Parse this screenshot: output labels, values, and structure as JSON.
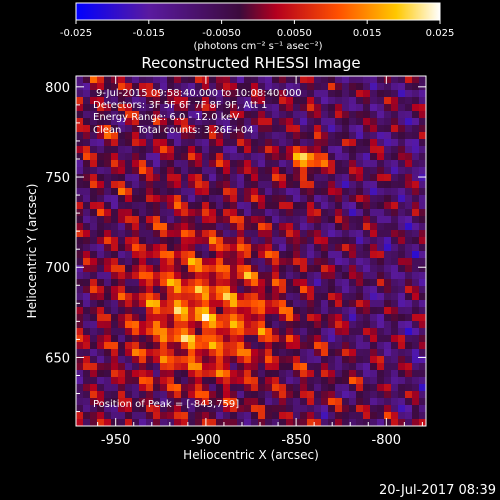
{
  "chart_data": {
    "type": "heatmap",
    "title": "Reconstructed RHESSI Image",
    "xlabel": "Heliocentric X (arcsec)",
    "ylabel": "Heliocentric Y (arcsec)",
    "xlim": [
      -972,
      -778
    ],
    "ylim": [
      612,
      806
    ],
    "x_ticks": [
      -950,
      -900,
      -850,
      -800
    ],
    "y_ticks": [
      650,
      700,
      750,
      800
    ],
    "colorbar": {
      "range": [
        -0.025,
        0.025
      ],
      "ticks": [
        "-0.025",
        "-0.015",
        "-0.0050",
        "0.0050",
        "0.015",
        "0.025"
      ],
      "units": "(photons cm⁻² s⁻¹ asec⁻²)",
      "colors": [
        "#0000ff",
        "#5a1aa0",
        "#3c0a3c",
        "#b4001e",
        "#ff5000",
        "#ffc800",
        "#ffffff"
      ]
    },
    "annotations": [
      "9-Jul-2015 09:58:40.000 to 10:08:40.000",
      "Detectors: 3F 5F 6F 7F 8F 9F, Att 1",
      "Energy Range: 6.0 - 12.0 keV",
      "Clean     Total counts: 3.26E+04"
    ],
    "peak_label": "Position of Peak = [-843,759]",
    "peak": [
      -843,
      759
    ],
    "bright_source_center": [
      -905,
      672
    ],
    "grid": false
  },
  "footer": {
    "timestamp": "20-Jul-2017 08:39"
  }
}
